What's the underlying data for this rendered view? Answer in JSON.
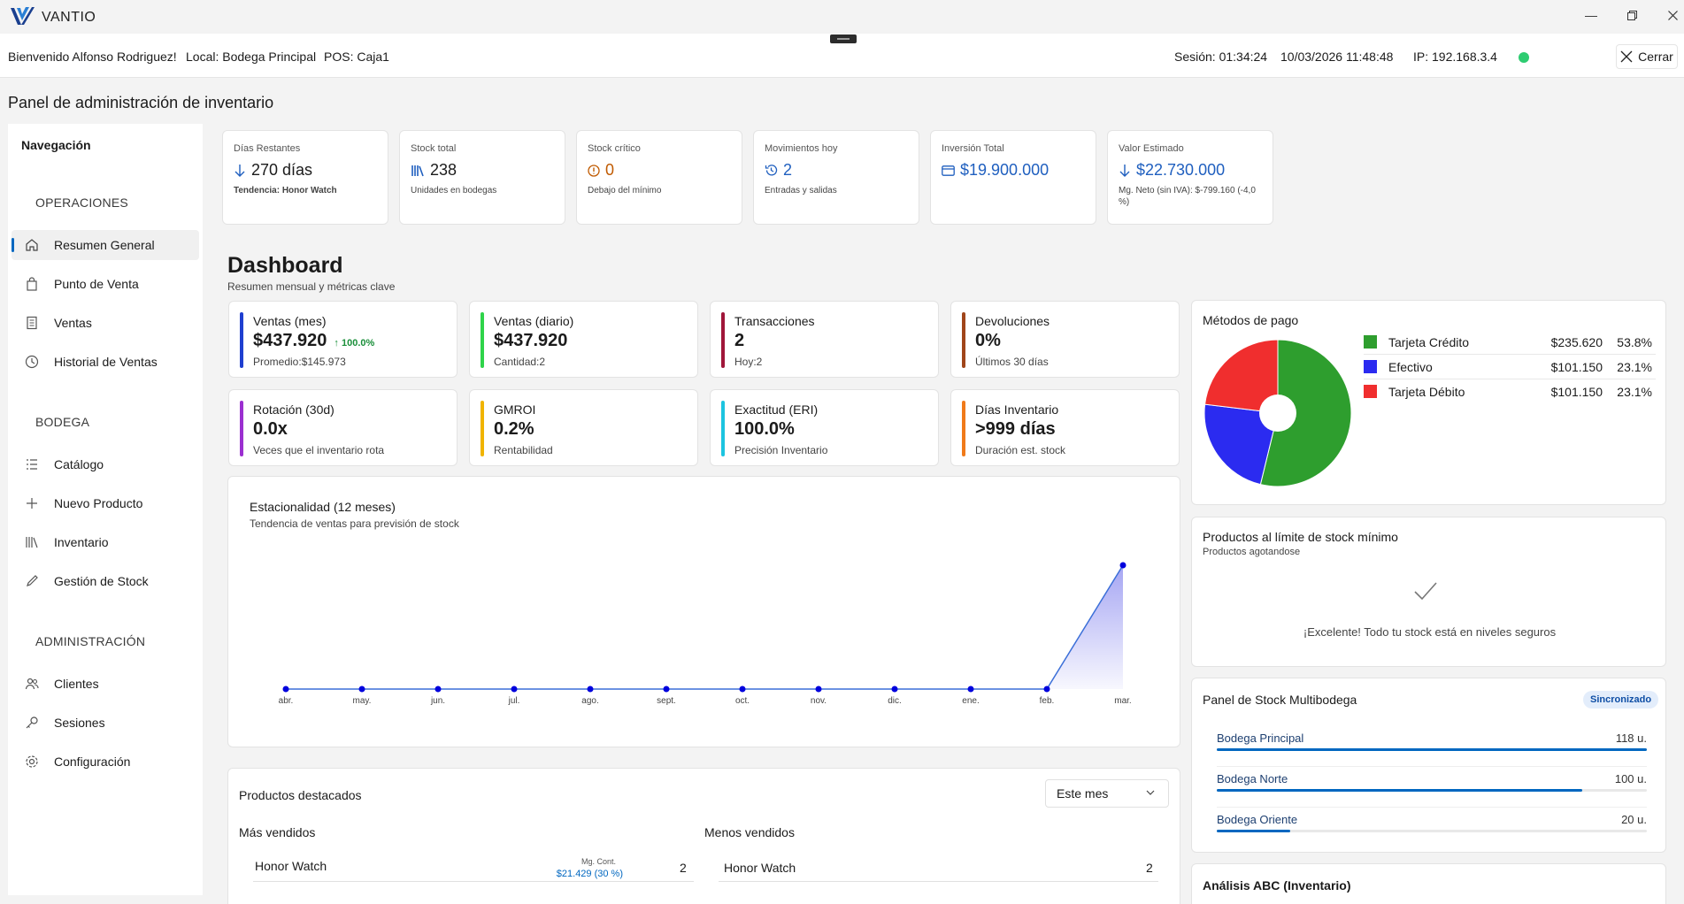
{
  "app": {
    "name": "VANTIO"
  },
  "infobar": {
    "welcome": "Bienvenido Alfonso Rodriguez!",
    "local": "Local: Bodega Principal",
    "pos": "POS: Caja1",
    "session": "Sesión: 01:34:24",
    "datetime": "10/03/2026 11:48:48",
    "ip": "IP: 192.168.3.4",
    "close_label": "Cerrar"
  },
  "page_title": "Panel de administración de inventario",
  "sidebar": {
    "title": "Navegación",
    "sections": [
      {
        "label": "OPERACIONES",
        "items": [
          {
            "label": "Resumen General",
            "icon": "home-icon",
            "active": true
          },
          {
            "label": "Punto de Venta",
            "icon": "bag-icon"
          },
          {
            "label": "Ventas",
            "icon": "receipt-icon"
          },
          {
            "label": "Historial de Ventas",
            "icon": "clock-icon"
          }
        ]
      },
      {
        "label": "BODEGA",
        "items": [
          {
            "label": "Catálogo",
            "icon": "list-icon"
          },
          {
            "label": "Nuevo Producto",
            "icon": "plus-icon"
          },
          {
            "label": "Inventario",
            "icon": "library-icon"
          },
          {
            "label": "Gestión de Stock",
            "icon": "pencil-icon"
          }
        ]
      },
      {
        "label": "ADMINISTRACIÓN",
        "items": [
          {
            "label": "Clientes",
            "icon": "people-icon"
          },
          {
            "label": "Sesiones",
            "icon": "key-icon"
          },
          {
            "label": "Configuración",
            "icon": "gear-icon"
          }
        ]
      }
    ]
  },
  "stats": [
    {
      "label": "Días Restantes",
      "value": "270 días",
      "sub": "Tendencia: Honor Watch",
      "icon": "arrow-down-icon",
      "color": "#1b1b1b"
    },
    {
      "label": "Stock total",
      "value": "238",
      "sub": "Unidades en bodegas",
      "icon": "library-icon",
      "color": "#1b1b1b"
    },
    {
      "label": "Stock crítico",
      "value": "0",
      "sub": "Debajo del mínimo",
      "icon": "warning-icon",
      "color": "#c05a00"
    },
    {
      "label": "Movimientos hoy",
      "value": "2",
      "sub": "Entradas y salidas",
      "icon": "history-icon",
      "color": "#1f5fbf"
    },
    {
      "label": "Inversión Total",
      "value": "$19.900.000",
      "sub": "",
      "icon": "card-icon",
      "color": "#1f5fbf"
    },
    {
      "label": "Valor Estimado",
      "value": "$22.730.000",
      "sub": "Mg. Neto (sin IVA): $-799.160 (-4,0 %)",
      "icon": "arrow-down-icon",
      "color": "#1f5fbf"
    }
  ],
  "dashboard": {
    "title": "Dashboard",
    "subtitle": "Resumen mensual y métricas clave"
  },
  "kpis": [
    {
      "label": "Ventas (mes)",
      "value": "$437.920",
      "trend": "↑ 100.0%",
      "sub": "Promedio:$145.973",
      "color": "#1f3fd0"
    },
    {
      "label": "Ventas (diario)",
      "value": "$437.920",
      "trend": "",
      "sub": "Cantidad:2",
      "color": "#2fd44a"
    },
    {
      "label": "Transacciones",
      "value": "2",
      "trend": "",
      "sub": "Hoy:2",
      "color": "#a0163a"
    },
    {
      "label": "Devoluciones",
      "value": "0%",
      "trend": "",
      "sub": "Últimos 30 días",
      "color": "#a0451a"
    },
    {
      "label": "Rotación (30d)",
      "value": "0.0x",
      "trend": "",
      "sub": "Veces que el inventario rota",
      "color": "#9b2fd0"
    },
    {
      "label": "GMROI",
      "value": "0.2%",
      "trend": "",
      "sub": "Rentabilidad",
      "color": "#f0b400"
    },
    {
      "label": "Exactitud (ERI)",
      "value": "100.0%",
      "trend": "",
      "sub": "Precisión Inventario",
      "color": "#1cc4e0"
    },
    {
      "label": "Días Inventario",
      "value": ">999 días",
      "trend": "",
      "sub": "Duración est. stock",
      "color": "#f07a1a"
    }
  ],
  "seasonality": {
    "title": "Estacionalidad (12 meses)",
    "subtitle": "Tendencia de ventas para previsión de stock"
  },
  "chart_data": [
    {
      "type": "area",
      "title": "Estacionalidad (12 meses)",
      "subtitle": "Tendencia de ventas para previsión de stock",
      "categories": [
        "abr.",
        "may.",
        "jun.",
        "jul.",
        "ago.",
        "sept.",
        "oct.",
        "nov.",
        "dic.",
        "ene.",
        "feb.",
        "mar."
      ],
      "series": [
        {
          "values": [
            0,
            0,
            0,
            0,
            0,
            0,
            0,
            0,
            0,
            0,
            0,
            437920
          ]
        }
      ],
      "color": "#0000dd",
      "grid": false
    },
    {
      "type": "pie",
      "title": "Métodos de pago",
      "slices": [
        {
          "label": "Tarjeta Crédito",
          "amount": "$235.620",
          "percent": "53.8%",
          "value": 53.8,
          "color": "#2e9e2e"
        },
        {
          "label": "Efectivo",
          "amount": "$101.150",
          "percent": "23.1%",
          "value": 23.1,
          "color": "#2b2bf0"
        },
        {
          "label": "Tarjeta Débito",
          "amount": "$101.150",
          "percent": "23.1%",
          "value": 23.1,
          "color": "#f02e2e"
        }
      ],
      "donut_hole": true
    }
  ],
  "payments": {
    "title": "Métodos de pago"
  },
  "low_stock": {
    "title": "Productos al límite de stock mínimo",
    "subtitle": "Productos agotandose",
    "message": "¡Excelente! Todo tu stock está en niveles seguros"
  },
  "multibodega": {
    "title": "Panel de Stock Multibodega",
    "badge": "Sincronizado",
    "warehouses": [
      {
        "name": "Bodega Principal",
        "qty": "118 u.",
        "level": 1.0
      },
      {
        "name": "Bodega Norte",
        "qty": "100 u.",
        "level": 0.85
      },
      {
        "name": "Bodega Oriente",
        "qty": "20 u.",
        "level": 0.17
      }
    ]
  },
  "abc": {
    "title": "Análisis ABC (Inventario)"
  },
  "featured": {
    "title": "Productos destacados",
    "period": "Este mes",
    "best_title": "Más vendidos",
    "worst_title": "Menos vendidos",
    "best": [
      {
        "name": "Honor Watch",
        "mg_label": "Mg. Cont.",
        "mg_value": "$21.429 (30 %)",
        "qty": "2"
      }
    ],
    "worst": [
      {
        "name": "Honor Watch",
        "qty": "2"
      }
    ]
  }
}
